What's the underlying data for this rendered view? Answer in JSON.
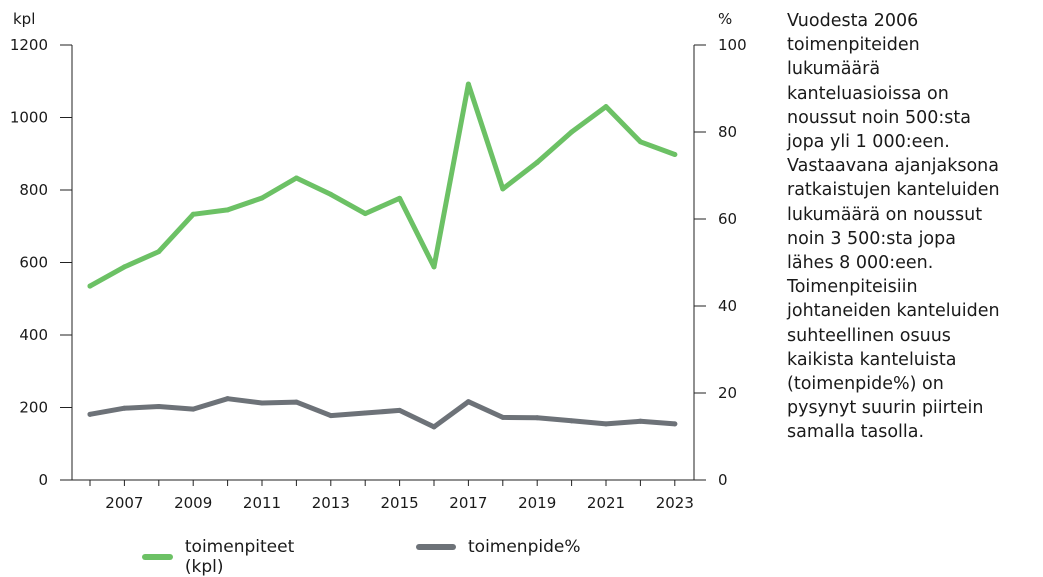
{
  "chart_data": {
    "type": "line",
    "left_axis": {
      "unit": "kpl",
      "ylim": [
        0,
        1200
      ],
      "ticks": [
        "0",
        "200",
        "400",
        "600",
        "800",
        "1000",
        "1200"
      ]
    },
    "right_axis": {
      "unit": "%",
      "ylim": [
        0,
        100
      ],
      "ticks": [
        "0",
        "20",
        "40",
        "60",
        "80",
        "100"
      ]
    },
    "x": [
      2006,
      2007,
      2008,
      2009,
      2010,
      2011,
      2012,
      2013,
      2014,
      2015,
      2016,
      2017,
      2018,
      2019,
      2020,
      2021,
      2022,
      2023
    ],
    "x_tick_labels": [
      "2007",
      "2009",
      "2011",
      "2013",
      "2015",
      "2017",
      "2019",
      "2021",
      "2023"
    ],
    "series": [
      {
        "name": "toimenpiteet (kpl)",
        "axis": "left",
        "color": "#6cc165",
        "values": [
          535,
          588,
          630,
          733,
          745,
          778,
          833,
          788,
          735,
          777,
          588,
          1092,
          803,
          876,
          960,
          1030,
          933,
          898
        ]
      },
      {
        "name": "toimenpide%",
        "axis": "right",
        "color": "#6d7278",
        "values": [
          15.1,
          16.5,
          16.9,
          16.3,
          18.7,
          17.7,
          17.9,
          14.8,
          15.4,
          16.0,
          12.2,
          18.0,
          14.4,
          14.3,
          13.6,
          12.9,
          13.5,
          12.9
        ]
      }
    ],
    "grid": false,
    "legend_position": "bottom"
  },
  "side_text": "Vuodesta 2006\ntoimenpiteiden\nlukumäärä\nkanteluasioissa on\nnoussut noin 500:sta\njopa yli 1 000:een.\nVastaavana ajanjaksona\nratkaistujen kanteluiden\nlukumäärä on noussut\nnoin 3 500:sta jopa\nlähes 8 000:een.\nToimenpiteisiin\njohtaneiden kanteluiden\nsuhteellinen osuus\nkaikista kanteluista\n(toimenpide%) on\npysynyt suurin piirtein\nsamalla tasolla."
}
